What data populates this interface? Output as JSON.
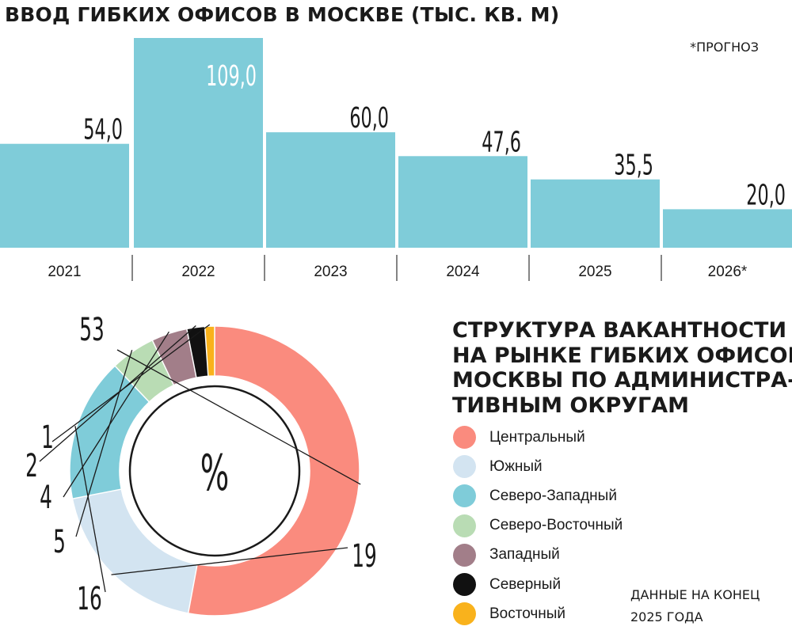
{
  "bar_chart": {
    "title": "ВВОД ГИБКИХ ОФИСОВ В МОСКВЕ (ТЫС. КВ. М)",
    "note": "*ПРОГНОЗ"
  },
  "donut_chart": {
    "title_lines": [
      "СТРУКТУРА ВАКАНТНОСТИ",
      "НА РЫНКЕ ГИБКИХ ОФИСОВ",
      "МОСКВЫ ПО АДМИНИСТРА-",
      "ТИВНЫМ ОКРУГАМ"
    ],
    "center_label": "%",
    "source_lines": [
      "ДАННЫЕ НА КОНЕЦ",
      "2025 ГОДА"
    ]
  },
  "chart_data": [
    {
      "type": "bar",
      "title": "ВВОД ГИБКИХ ОФИСОВ В МОСКВЕ (ТЫС. КВ. М)",
      "categories": [
        "2021",
        "2022",
        "2023",
        "2024",
        "2025",
        "2026*"
      ],
      "values": [
        54.0,
        109.0,
        60.0,
        47.6,
        35.5,
        20.0
      ],
      "value_labels": [
        "54,0",
        "109,0",
        "60,0",
        "47,6",
        "35,5",
        "20,0"
      ],
      "annotation": "*ПРОГНОЗ",
      "xlabel": "",
      "ylabel": "",
      "ylim": [
        0,
        109.0
      ],
      "grid": false,
      "colors": {
        "bar": "#7fccd9",
        "highlight_label": "#ffffff",
        "text": "#1a1a1a"
      }
    },
    {
      "type": "pie",
      "variant": "donut",
      "title": "СТРУКТУРА ВАКАНТНОСТИ НА РЫНКЕ ГИБКИХ ОФИСОВ МОСКВЫ ПО АДМИНИСТРАТИВНЫМ ОКРУГАМ",
      "center_label": "%",
      "legend_position": "right",
      "slices": [
        {
          "name": "Центральный",
          "value": 53,
          "color": "#fa8b7e"
        },
        {
          "name": "Южный",
          "value": 19,
          "color": "#d3e4f1"
        },
        {
          "name": "Северо-Западный",
          "value": 16,
          "color": "#7fccd9"
        },
        {
          "name": "Северо-Восточный",
          "value": 5,
          "color": "#b9dcb4"
        },
        {
          "name": "Западный",
          "value": 4,
          "color": "#a27e89"
        },
        {
          "name": "Северный",
          "value": 2,
          "color": "#111111"
        },
        {
          "name": "Восточный",
          "value": 1,
          "color": "#f9b21c"
        }
      ]
    }
  ]
}
